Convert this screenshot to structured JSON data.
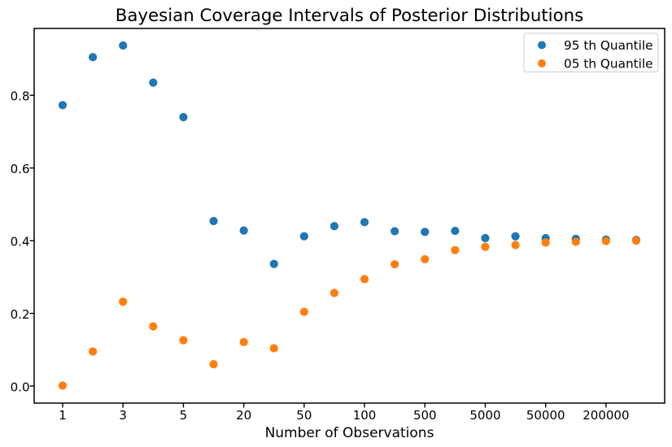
{
  "chart_data": {
    "type": "scatter",
    "title": "Bayesian Coverage Intervals of Posterior Distributions",
    "xlabel": "Number of Observations",
    "ylabel": "",
    "x_axis": {
      "kind": "categorical-index",
      "num_points": 20,
      "tick_indices": [
        0,
        2,
        4,
        6,
        8,
        10,
        12,
        14,
        16,
        18
      ],
      "tick_labels": [
        "1",
        "3",
        "5",
        "20",
        "50",
        "100",
        "500",
        "5000",
        "50000",
        "200000"
      ]
    },
    "y_axis": {
      "tick_values": [
        0.0,
        0.2,
        0.4,
        0.6,
        0.8
      ],
      "tick_labels": [
        "0.0",
        "0.2",
        "0.4",
        "0.6",
        "0.8"
      ],
      "lim": [
        -0.047,
        0.984
      ]
    },
    "grid": false,
    "legend": {
      "position": "upper right"
    },
    "series": [
      {
        "name": "95 th Quantile",
        "color": "#1f77b4",
        "values": [
          0.773,
          0.905,
          0.937,
          0.835,
          0.74,
          0.454,
          0.428,
          0.336,
          0.412,
          0.44,
          0.451,
          0.426,
          0.424,
          0.427,
          0.407,
          0.412,
          0.407,
          0.405,
          0.403,
          0.402
        ]
      },
      {
        "name": "05 th Quantile",
        "color": "#ff7f0e",
        "values": [
          0.001,
          0.095,
          0.232,
          0.164,
          0.126,
          0.06,
          0.121,
          0.104,
          0.204,
          0.256,
          0.294,
          0.335,
          0.349,
          0.374,
          0.383,
          0.388,
          0.395,
          0.397,
          0.399,
          0.4
        ]
      }
    ]
  }
}
